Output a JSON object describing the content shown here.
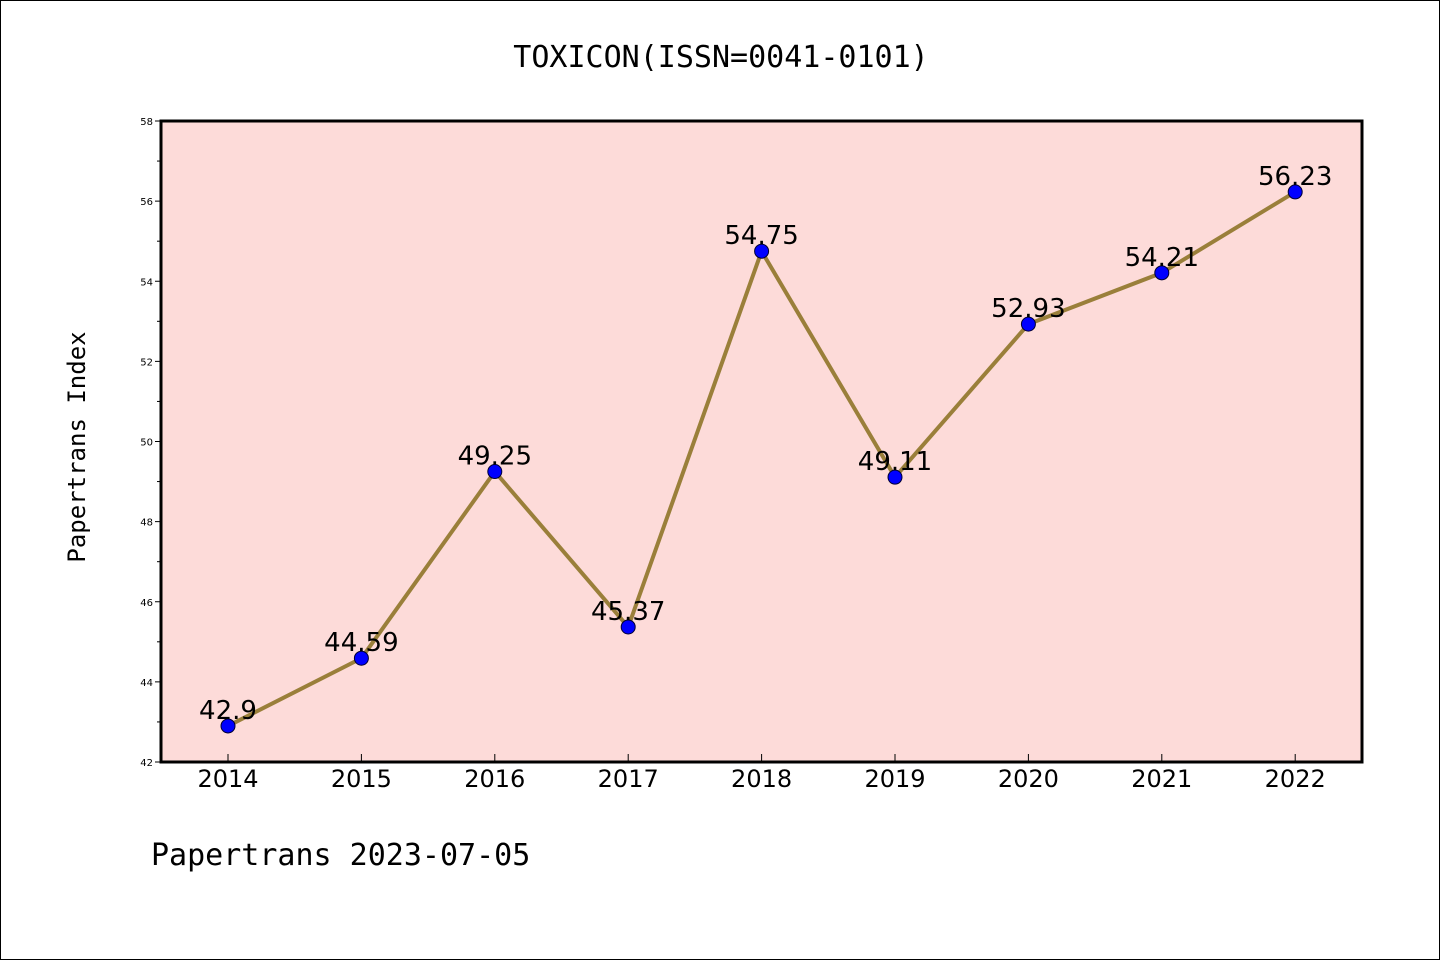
{
  "footer": "Papertrans 2023-07-05",
  "chart_data": {
    "type": "line",
    "title": "TOXICON(ISSN=0041-0101)",
    "xlabel": "",
    "ylabel": "Papertrans Index",
    "categories": [
      "2014",
      "2015",
      "2016",
      "2017",
      "2018",
      "2019",
      "2020",
      "2021",
      "2022"
    ],
    "series": [
      {
        "values": [
          42.9,
          44.59,
          49.25,
          45.37,
          54.75,
          49.11,
          52.93,
          54.21,
          56.23
        ],
        "labels": [
          "42.9",
          "44.59",
          "49.25",
          "45.37",
          "54.75",
          "49.11",
          "52.93",
          "54.21",
          "56.23"
        ]
      }
    ],
    "ylim": [
      42,
      58
    ],
    "yticks": [
      "42",
      "44",
      "46",
      "48",
      "50",
      "52",
      "54",
      "56",
      "58"
    ],
    "grid": false,
    "colors": {
      "plot_background": "#fddbd9",
      "line": "#9a7f3a",
      "marker": "#0000ff"
    }
  }
}
